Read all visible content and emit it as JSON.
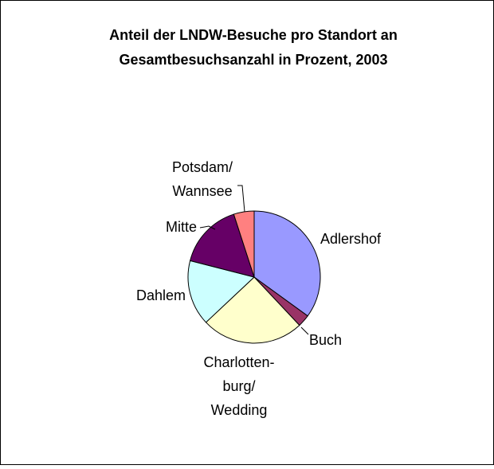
{
  "chart_data": {
    "type": "pie",
    "title_lines": [
      "Anteil der LNDW-Besuche pro Standort an",
      "Gesamtbesuchsanzahl in Prozent, 2003"
    ],
    "unit": "Prozent",
    "slices": [
      {
        "label": "Adlershof",
        "label_lines": [
          "Adlershof"
        ],
        "value": 35,
        "color": "#9999ff"
      },
      {
        "label": "Buch",
        "label_lines": [
          "Buch"
        ],
        "value": 3,
        "color": "#993366"
      },
      {
        "label": "Charlottenburg/Wedding",
        "label_lines": [
          "Charlotten-",
          "burg/",
          "Wedding"
        ],
        "value": 25,
        "color": "#ffffcc"
      },
      {
        "label": "Dahlem",
        "label_lines": [
          "Dahlem"
        ],
        "value": 16,
        "color": "#ccffff"
      },
      {
        "label": "Mitte",
        "label_lines": [
          "Mitte"
        ],
        "value": 16,
        "color": "#660066"
      },
      {
        "label": "Potsdam/Wannsee",
        "label_lines": [
          "Potsdam/",
          "Wannsee"
        ],
        "value": 5,
        "color": "#ff8080"
      }
    ],
    "start_angle_deg": 0,
    "direction": "clockwise",
    "legend": "none",
    "grid": false
  }
}
